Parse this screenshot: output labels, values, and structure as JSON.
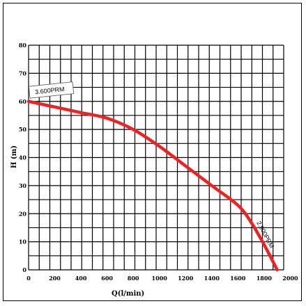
{
  "chart_data": {
    "type": "line",
    "xlabel": "Q(l/min)",
    "ylabel": "H (m)",
    "xlim": [
      0,
      1950
    ],
    "ylim": [
      0,
      80
    ],
    "x_ticks": [
      0,
      200,
      400,
      600,
      800,
      1000,
      1200,
      1400,
      1600,
      1800,
      2000
    ],
    "y_ticks": [
      0,
      10,
      20,
      30,
      40,
      50,
      60,
      70,
      80
    ],
    "grid": true,
    "series": [
      {
        "color": "#ee2222",
        "x": [
          0,
          200,
          400,
          600,
          800,
          1000,
          1200,
          1400,
          1600,
          1700,
          1800,
          1900
        ],
        "y": [
          60,
          58,
          56,
          54,
          50,
          44,
          37,
          30,
          23,
          17,
          9,
          0
        ]
      }
    ],
    "annotations": [
      {
        "text": "3.600PRM",
        "x": 60,
        "y": 63
      },
      {
        "text": "2.900PRM",
        "x": 1820,
        "y": 10
      }
    ]
  }
}
